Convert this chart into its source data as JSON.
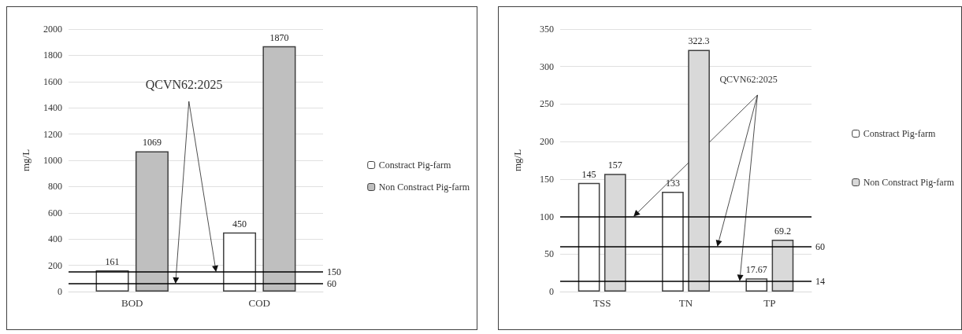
{
  "chart_data": [
    {
      "type": "bar",
      "ylabel": "mg/L",
      "categories": [
        "BOD",
        "COD"
      ],
      "series": [
        {
          "name": "Constract Pig-farm",
          "color": "#ffffff",
          "values": [
            161,
            450
          ]
        },
        {
          "name": "Non Constract Pig-farm",
          "color": "#bfbfbf",
          "values": [
            1069,
            1870
          ]
        }
      ],
      "ylim": [
        0,
        2000
      ],
      "yticks": [
        0,
        200,
        400,
        600,
        800,
        1000,
        1200,
        1400,
        1600,
        1800,
        2000
      ],
      "ref_lines": [
        {
          "axis": "y",
          "value": 60,
          "label": "60",
          "color": "#000000"
        },
        {
          "axis": "y",
          "value": 150,
          "label": "150",
          "color": "#000000"
        }
      ],
      "annotations": [
        "QCVN62:2025"
      ],
      "data_labels": true,
      "grid": "y",
      "legend": "right"
    },
    {
      "type": "bar",
      "ylabel": "mg/L",
      "categories": [
        "TSS",
        "TN",
        "TP"
      ],
      "series": [
        {
          "name": "Constract Pig-farm",
          "color": "#ffffff",
          "values": [
            145,
            133,
            17.67
          ]
        },
        {
          "name": "Non Constract Pig-farm",
          "color": "#d9d9d9",
          "values": [
            157,
            322.3,
            69.2
          ]
        }
      ],
      "ylim": [
        0,
        350
      ],
      "yticks": [
        0,
        50,
        100,
        150,
        200,
        250,
        300,
        350
      ],
      "ref_lines": [
        {
          "axis": "y",
          "value": 100,
          "label": null,
          "color": "#000000"
        },
        {
          "axis": "y",
          "value": 60,
          "label": "60",
          "color": "#000000"
        },
        {
          "axis": "y",
          "value": 14,
          "label": "14",
          "color": "#000000"
        }
      ],
      "annotations": [
        "QCVN62:2025"
      ],
      "data_labels": true,
      "grid": "y",
      "legend": "right"
    }
  ]
}
